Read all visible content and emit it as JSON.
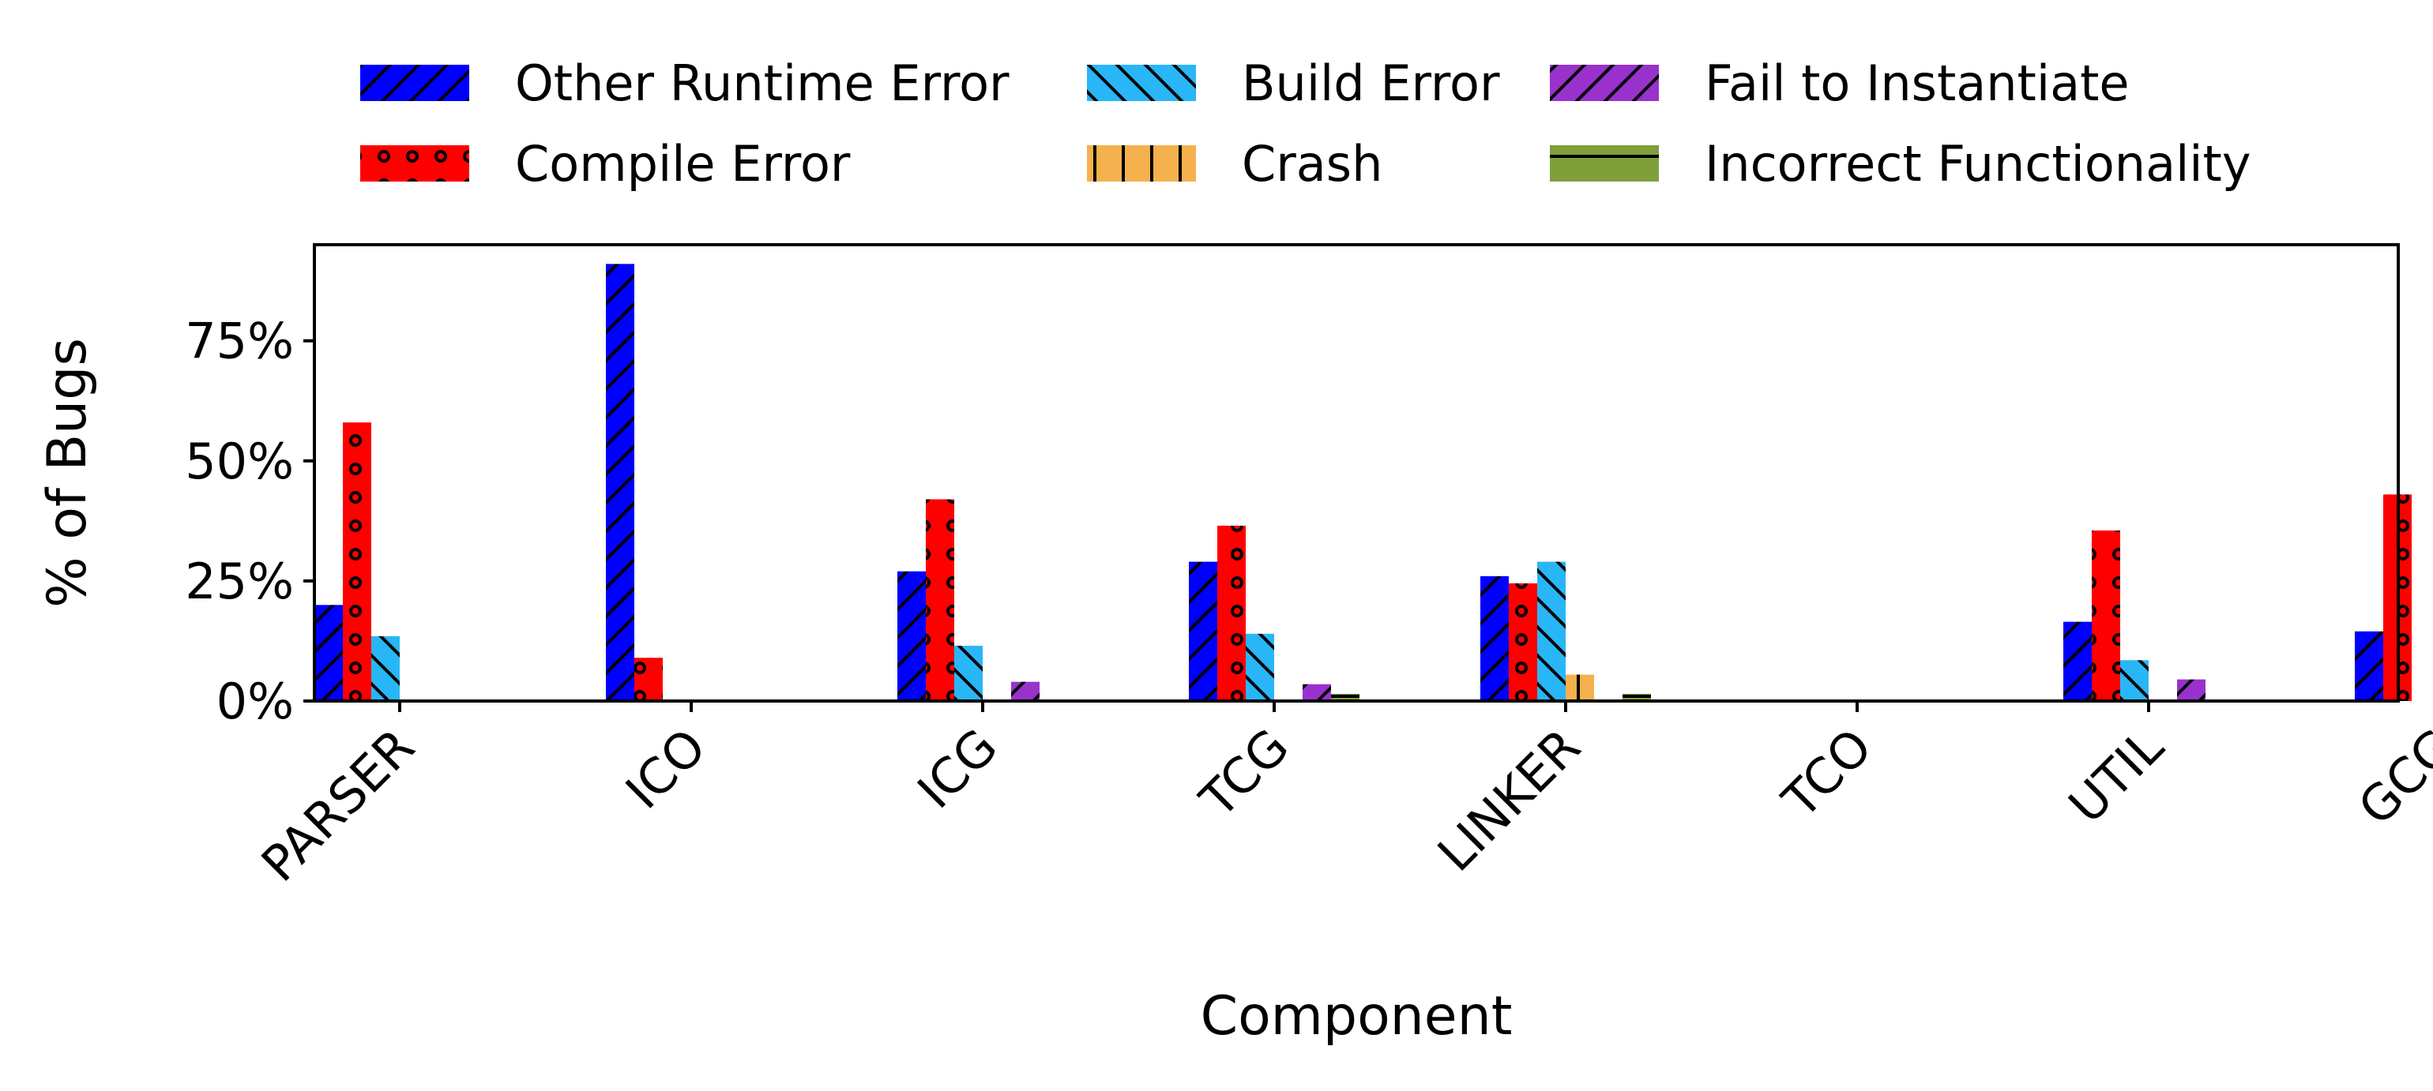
{
  "chart_data": {
    "type": "bar",
    "title": "",
    "xlabel": "Component",
    "ylabel": "% of Bugs",
    "categories": [
      "PARSER",
      "ICO",
      "ICG",
      "TCG",
      "LINKER",
      "TCO",
      "UTIL",
      "GCG"
    ],
    "ylim": [
      0,
      95
    ],
    "yticks": [
      0,
      25,
      50,
      75
    ],
    "ytick_labels": [
      "0%",
      "25%",
      "50%",
      "75%"
    ],
    "grid": false,
    "legend_position": "top",
    "series": [
      {
        "name": "Other Runtime Error",
        "color": "#0000FF",
        "hatch": "forward-slash",
        "values": [
          20,
          91,
          27,
          29,
          26,
          0,
          16.5,
          14.5
        ]
      },
      {
        "name": "Compile Error",
        "color": "#FF0000",
        "hatch": "circles",
        "values": [
          58,
          9,
          42,
          36.5,
          24.5,
          0,
          35.5,
          43
        ]
      },
      {
        "name": "Build Error",
        "color": "#29B6F6",
        "hatch": "back-slash",
        "values": [
          13.5,
          0,
          11.5,
          14,
          29,
          0,
          8.5,
          0
        ]
      },
      {
        "name": "Crash",
        "color": "#F5B14E",
        "hatch": "vertical",
        "values": [
          0,
          0,
          0,
          0,
          5.5,
          0,
          0,
          0
        ]
      },
      {
        "name": "Fail to Instantiate",
        "color": "#9932CC",
        "hatch": "forward-slash",
        "values": [
          0,
          0,
          4,
          3.5,
          0,
          0,
          4.5,
          0
        ]
      },
      {
        "name": "Incorrect Functionality",
        "color": "#7F9F3A",
        "hatch": "horizontal",
        "values": [
          0,
          0,
          0,
          1.5,
          1.5,
          0,
          0,
          0
        ]
      }
    ]
  }
}
